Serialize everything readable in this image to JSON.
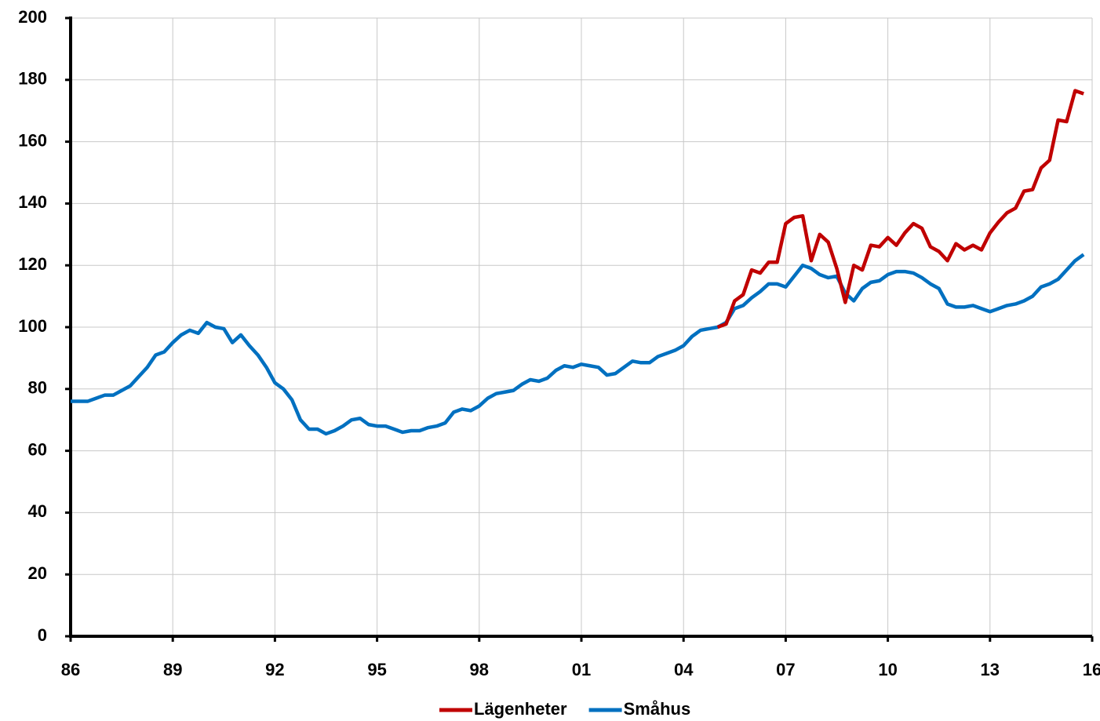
{
  "chart_data": {
    "type": "line",
    "x": [
      1986,
      1986.25,
      1986.5,
      1986.75,
      1987,
      1987.25,
      1987.5,
      1987.75,
      1988,
      1988.25,
      1988.5,
      1988.75,
      1989,
      1989.25,
      1989.5,
      1989.75,
      1990,
      1990.25,
      1990.5,
      1990.75,
      1991,
      1991.25,
      1991.5,
      1991.75,
      1992,
      1992.25,
      1992.5,
      1992.75,
      1993,
      1993.25,
      1993.5,
      1993.75,
      1994,
      1994.25,
      1994.5,
      1994.75,
      1995,
      1995.25,
      1995.5,
      1995.75,
      1996,
      1996.25,
      1996.5,
      1996.75,
      1997,
      1997.25,
      1997.5,
      1997.75,
      1998,
      1998.25,
      1998.5,
      1998.75,
      1999,
      1999.25,
      1999.5,
      1999.75,
      2000,
      2000.25,
      2000.5,
      2000.75,
      2001,
      2001.25,
      2001.5,
      2001.75,
      2002,
      2002.25,
      2002.5,
      2002.75,
      2003,
      2003.25,
      2003.5,
      2003.75,
      2004,
      2004.25,
      2004.5,
      2004.75,
      2005,
      2005.25,
      2005.5,
      2005.75,
      2006,
      2006.25,
      2006.5,
      2006.75,
      2007,
      2007.25,
      2007.5,
      2007.75,
      2008,
      2008.25,
      2008.5,
      2008.75,
      2009,
      2009.25,
      2009.5,
      2009.75,
      2010,
      2010.25,
      2010.5,
      2010.75,
      2011,
      2011.25,
      2011.5,
      2011.75,
      2012,
      2012.25,
      2012.5,
      2012.75,
      2013,
      2013.25,
      2013.5,
      2013.75,
      2014,
      2014.25,
      2014.5,
      2014.75,
      2015,
      2015.25,
      2015.5,
      2015.75
    ],
    "series": [
      {
        "name": "Lägenheter",
        "color": "#c00000",
        "values": [
          null,
          null,
          null,
          null,
          null,
          null,
          null,
          null,
          null,
          null,
          null,
          null,
          null,
          null,
          null,
          null,
          null,
          null,
          null,
          null,
          null,
          null,
          null,
          null,
          null,
          null,
          null,
          null,
          null,
          null,
          null,
          null,
          null,
          null,
          null,
          null,
          null,
          null,
          null,
          null,
          null,
          null,
          null,
          null,
          null,
          null,
          null,
          null,
          null,
          null,
          null,
          null,
          null,
          null,
          null,
          null,
          null,
          null,
          null,
          null,
          null,
          null,
          null,
          null,
          null,
          null,
          null,
          null,
          null,
          null,
          null,
          null,
          null,
          null,
          null,
          null,
          100,
          101,
          108.5,
          110.5,
          118.5,
          117.5,
          121,
          121,
          133.5,
          135.5,
          136,
          121.5,
          130,
          127.5,
          119,
          108,
          120,
          118.5,
          126.5,
          126,
          129,
          126.5,
          130.5,
          133.5,
          132,
          126,
          124.5,
          121.5,
          127,
          125,
          126.5,
          125,
          130.5,
          134,
          137,
          138.5,
          144,
          144.5,
          151.5,
          154,
          167,
          166.5,
          176.5,
          175.5
        ]
      },
      {
        "name": "Småhus",
        "color": "#0070c0",
        "values": [
          76,
          76,
          76,
          77,
          78,
          78,
          79.5,
          81,
          84,
          87,
          91,
          92,
          95,
          97.5,
          99,
          98,
          101.5,
          100,
          99.5,
          95,
          97.5,
          94,
          91,
          87,
          82,
          80,
          76.5,
          70,
          67,
          67,
          65.5,
          66.5,
          68,
          70,
          70.5,
          68.5,
          68,
          68,
          67,
          66,
          66.5,
          66.5,
          67.5,
          68,
          69,
          72.5,
          73.5,
          73,
          74.5,
          77,
          78.5,
          79,
          79.5,
          81.5,
          83,
          82.5,
          83.5,
          86,
          87.5,
          87,
          88,
          87.5,
          87,
          84.5,
          85,
          87,
          89,
          88.5,
          88.5,
          90.5,
          91.5,
          92.5,
          94,
          97,
          99,
          99.5,
          100,
          101.5,
          106,
          107,
          109.5,
          111.5,
          114,
          114,
          113,
          116.5,
          120,
          119,
          117,
          116,
          116.5,
          111,
          108.5,
          112.5,
          114.5,
          115,
          117,
          118,
          118,
          117.5,
          116,
          114,
          112.5,
          107.5,
          106.5,
          106.5,
          107,
          106,
          105,
          106,
          107,
          107.5,
          108.5,
          110,
          113,
          114,
          115.5,
          118.5,
          121.5,
          123.5
        ]
      }
    ],
    "xlim": [
      1986,
      2016
    ],
    "xticks": [
      {
        "value": 1986,
        "label": "86"
      },
      {
        "value": 1989,
        "label": "89"
      },
      {
        "value": 1992,
        "label": "92"
      },
      {
        "value": 1995,
        "label": "95"
      },
      {
        "value": 1998,
        "label": "98"
      },
      {
        "value": 2001,
        "label": "01"
      },
      {
        "value": 2004,
        "label": "04"
      },
      {
        "value": 2007,
        "label": "07"
      },
      {
        "value": 2010,
        "label": "10"
      },
      {
        "value": 2013,
        "label": "13"
      },
      {
        "value": 2016,
        "label": "16"
      }
    ],
    "ylim": [
      0,
      200
    ],
    "yticks": [
      0,
      20,
      40,
      60,
      80,
      100,
      120,
      140,
      160,
      180,
      200
    ],
    "grid": true,
    "legend": "bottom"
  }
}
